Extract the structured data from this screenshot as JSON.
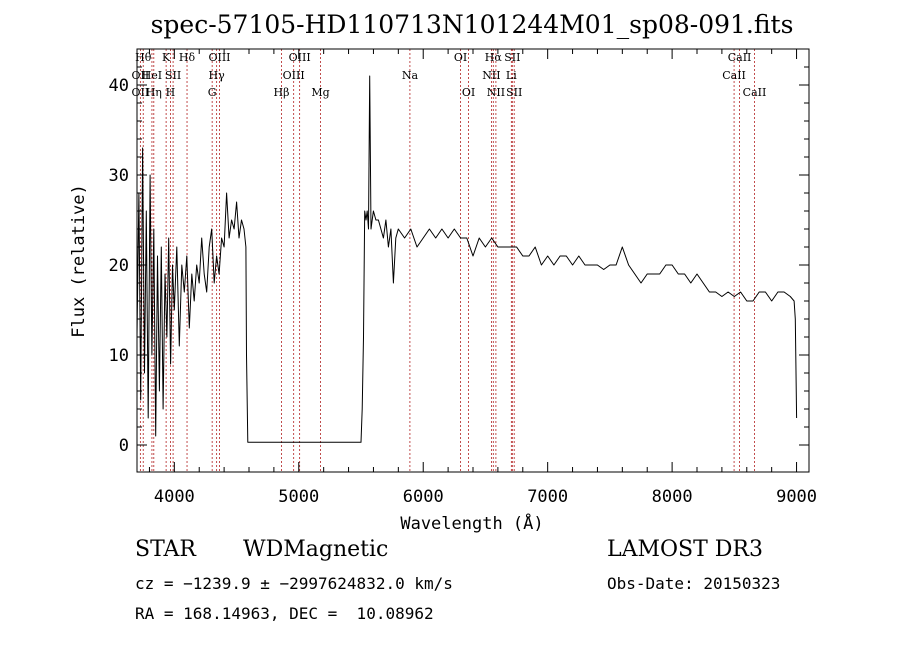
{
  "chart_data": {
    "type": "line",
    "title": "spec-57105-HD110713N101244M01_sp08-091.fits",
    "xlabel": "Wavelength (Å)",
    "ylabel": "Flux (relative)",
    "xlim": [
      3700,
      9100
    ],
    "ylim": [
      -3,
      44
    ],
    "x_ticks": [
      4000,
      5000,
      6000,
      7000,
      8000,
      9000
    ],
    "y_ticks": [
      0,
      10,
      20,
      30,
      40
    ],
    "grid": false,
    "series": [
      {
        "color": "#000000",
        "x": [
          3700,
          3715,
          3730,
          3745,
          3760,
          3775,
          3790,
          3805,
          3820,
          3835,
          3850,
          3865,
          3880,
          3895,
          3910,
          3925,
          3940,
          3955,
          3970,
          3985,
          4000,
          4020,
          4040,
          4060,
          4080,
          4100,
          4120,
          4140,
          4160,
          4180,
          4200,
          4220,
          4240,
          4260,
          4280,
          4300,
          4320,
          4340,
          4360,
          4380,
          4400,
          4420,
          4440,
          4460,
          4480,
          4500,
          4520,
          4540,
          4560,
          4575,
          4580,
          4590,
          5500,
          5510,
          5520,
          5530,
          5540,
          5550,
          5560,
          5570,
          5580,
          5600,
          5620,
          5640,
          5660,
          5680,
          5700,
          5720,
          5740,
          5760,
          5780,
          5800,
          5850,
          5900,
          5950,
          6000,
          6050,
          6100,
          6150,
          6200,
          6250,
          6300,
          6350,
          6400,
          6450,
          6500,
          6550,
          6600,
          6650,
          6700,
          6750,
          6800,
          6850,
          6900,
          6950,
          7000,
          7050,
          7100,
          7150,
          7200,
          7250,
          7300,
          7350,
          7400,
          7450,
          7500,
          7550,
          7600,
          7650,
          7700,
          7750,
          7800,
          7850,
          7900,
          7950,
          8000,
          8050,
          8100,
          8150,
          8200,
          8250,
          8300,
          8350,
          8400,
          8450,
          8500,
          8550,
          8600,
          8650,
          8700,
          8750,
          8800,
          8850,
          8900,
          8950,
          8980,
          8990,
          9000
        ],
        "y": [
          12,
          28,
          5,
          33,
          8,
          26,
          3,
          30,
          10,
          24,
          1,
          21,
          6,
          22,
          4,
          19,
          12,
          23,
          9,
          20,
          15,
          22,
          11,
          20,
          17,
          21,
          13,
          19,
          16,
          20,
          18,
          23,
          19,
          17,
          22,
          24,
          18,
          21,
          19,
          23,
          22,
          28,
          23,
          25,
          24,
          27,
          23,
          25,
          24,
          22,
          10,
          0.3,
          0.3,
          4,
          12,
          26,
          25,
          26,
          24,
          41,
          24,
          26,
          25,
          25,
          24,
          23,
          25,
          22,
          24,
          18,
          23,
          24,
          23,
          24,
          22,
          23,
          24,
          23,
          24,
          23,
          24,
          23,
          23,
          21,
          23,
          22,
          23,
          22,
          22,
          22,
          22,
          21,
          21,
          22,
          20,
          21,
          20,
          21,
          21,
          20,
          21,
          20,
          20,
          20,
          19.5,
          20,
          20,
          22,
          20,
          19,
          18,
          19,
          19,
          19,
          20,
          20,
          19,
          19,
          18,
          19,
          18,
          17,
          17,
          16.5,
          17,
          16.5,
          17,
          16,
          16,
          17,
          17,
          16,
          17,
          17,
          16.5,
          16,
          14,
          3
        ]
      }
    ],
    "line_markers": [
      {
        "label": "Hθ",
        "x": 3750,
        "row": 0
      },
      {
        "label": "OII",
        "x": 3727,
        "row": 1
      },
      {
        "label": "OII",
        "x": 3727,
        "row": 2
      },
      {
        "label": "HeI",
        "x": 3820,
        "row": 1
      },
      {
        "label": "Hη",
        "x": 3835,
        "row": 2
      },
      {
        "label": "K",
        "x": 3934,
        "row": 0
      },
      {
        "label": "SII",
        "x": 3990,
        "row": 1
      },
      {
        "label": "H",
        "x": 3969,
        "row": 2
      },
      {
        "label": "Hδ",
        "x": 4102,
        "row": 0
      },
      {
        "label": "OIII",
        "x": 4363,
        "row": 0
      },
      {
        "label": "Hγ",
        "x": 4340,
        "row": 1
      },
      {
        "label": "G",
        "x": 4304,
        "row": 2
      },
      {
        "label": "OIII",
        "x": 5007,
        "row": 0
      },
      {
        "label": "OIII",
        "x": 4959,
        "row": 1
      },
      {
        "label": "Hβ",
        "x": 4861,
        "row": 2
      },
      {
        "label": "Mg",
        "x": 5175,
        "row": 2
      },
      {
        "label": "Na",
        "x": 5893,
        "row": 1
      },
      {
        "label": "OI",
        "x": 6300,
        "row": 0
      },
      {
        "label": "OI",
        "x": 6364,
        "row": 2
      },
      {
        "label": "Hα",
        "x": 6563,
        "row": 0
      },
      {
        "label": "NII",
        "x": 6548,
        "row": 1
      },
      {
        "label": "NII",
        "x": 6584,
        "row": 2
      },
      {
        "label": "SII",
        "x": 6716,
        "row": 0
      },
      {
        "label": "Li",
        "x": 6708,
        "row": 1
      },
      {
        "label": "SII",
        "x": 6731,
        "row": 2
      },
      {
        "label": "CaII",
        "x": 8542,
        "row": 0
      },
      {
        "label": "CaII",
        "x": 8498,
        "row": 1
      },
      {
        "label": "CaII",
        "x": 8662,
        "row": 2
      }
    ]
  },
  "footer": {
    "object_class": "STAR",
    "subclass": "WDMagnetic",
    "survey": "LAMOST DR3",
    "cz": "cz = −1239.9 ± −2997624832.0 km/s",
    "obs_date": "Obs-Date: 20150323",
    "coords": "RA = 168.14963, DEC =  10.08962"
  },
  "colors": {
    "spectrum": "#000000",
    "marker_line": "#b22222"
  }
}
